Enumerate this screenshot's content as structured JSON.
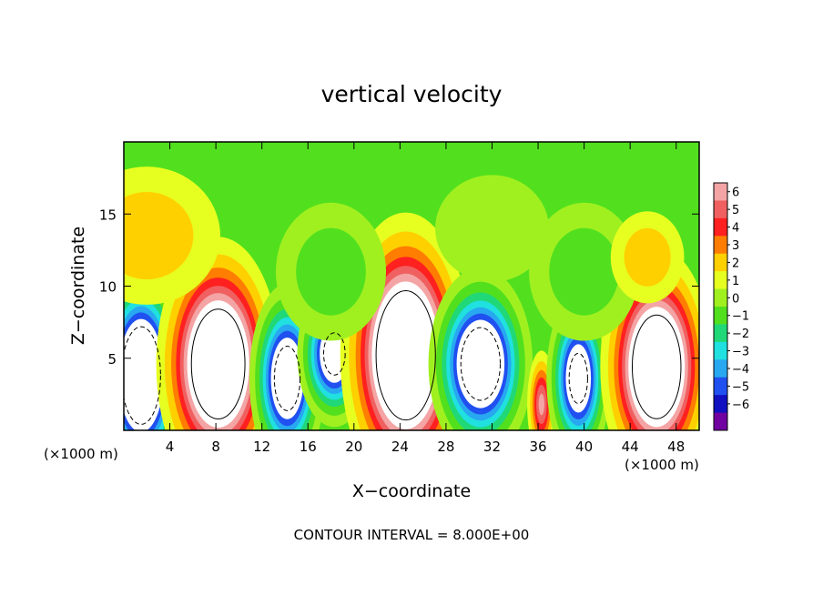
{
  "chart_data": {
    "type": "heatmap",
    "title": "vertical velocity",
    "xlabel": "X−coordinate",
    "ylabel": "Z−coordinate",
    "x_units_label": "(×1000 m)",
    "x_units_label_right": "(×1000 m)",
    "xlim": [
      0,
      50
    ],
    "ylim": [
      0,
      20
    ],
    "x_ticks": [
      4,
      8,
      12,
      16,
      20,
      24,
      28,
      32,
      36,
      40,
      44,
      48
    ],
    "y_ticks": [
      5,
      10,
      15
    ],
    "contour_interval_text": "CONTOUR INTERVAL = 8.000E+00",
    "colorbar": {
      "levels": [
        "6",
        "5",
        "4",
        "3",
        "2",
        "1",
        "0",
        "−1",
        "−2",
        "−3",
        "−4",
        "−5",
        "−6"
      ],
      "colors": [
        "#f4a4a4",
        "#f06060",
        "#ff2020",
        "#ff7d00",
        "#ffd000",
        "#e6ff20",
        "#a0f020",
        "#52e01e",
        "#20d878",
        "#20e0e0",
        "#28a8f0",
        "#2050f0",
        "#1010c0",
        "#7000a0"
      ]
    },
    "cells": [
      {
        "x": 1.5,
        "z": 3.8,
        "amp": -14,
        "sx": 1.6,
        "sz": 3.2
      },
      {
        "x": 8.2,
        "z": 4.6,
        "amp": 14,
        "sx": 2.2,
        "sz": 3.6
      },
      {
        "x": 14.2,
        "z": 3.6,
        "amp": -11,
        "sx": 1.4,
        "sz": 2.8
      },
      {
        "x": 18.3,
        "z": 5.3,
        "amp": -10,
        "sx": 1.4,
        "sz": 2.2
      },
      {
        "x": 24.5,
        "z": 5.2,
        "amp": 15,
        "sx": 2.3,
        "sz": 4.0
      },
      {
        "x": 31.0,
        "z": 4.6,
        "amp": -12,
        "sx": 1.9,
        "sz": 2.8
      },
      {
        "x": 36.3,
        "z": 1.8,
        "amp": 6,
        "sx": 0.6,
        "sz": 1.8
      },
      {
        "x": 39.5,
        "z": 3.6,
        "amp": -10,
        "sx": 1.2,
        "sz": 2.6
      },
      {
        "x": 46.3,
        "z": 4.4,
        "amp": 14,
        "sx": 2.0,
        "sz": 3.4
      },
      {
        "x": 2.0,
        "z": 13.5,
        "amp": 2.5,
        "sx": 4.0,
        "sz": 3.0
      },
      {
        "x": 18.0,
        "z": 11.0,
        "amp": -2.5,
        "sx": 3.0,
        "sz": 3.0
      },
      {
        "x": 32.0,
        "z": 14.0,
        "amp": -1.5,
        "sx": 4.0,
        "sz": 3.0
      },
      {
        "x": 40.0,
        "z": 11.0,
        "amp": -2.5,
        "sx": 3.0,
        "sz": 3.0
      },
      {
        "x": 45.5,
        "z": 12.0,
        "amp": 2.5,
        "sx": 2.0,
        "sz": 2.0
      }
    ]
  }
}
